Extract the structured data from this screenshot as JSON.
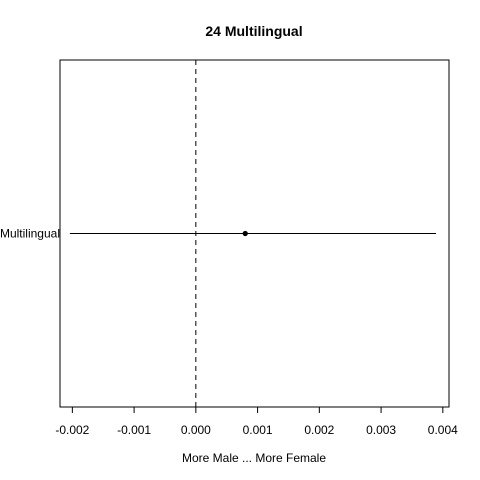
{
  "chart_data": {
    "type": "scatter",
    "title": "24 Multilingual",
    "xlabel": "More Male ... More Female",
    "ylabel": "",
    "xlim": [
      -0.0022,
      0.0041
    ],
    "xticks": [
      -0.002,
      -0.001,
      0.0,
      0.001,
      0.002,
      0.003,
      0.004
    ],
    "xtick_labels": [
      "-0.002",
      "-0.001",
      "0.000",
      "0.001",
      "0.002",
      "0.003",
      "0.004"
    ],
    "reference_line_x": 0.0,
    "series": [
      {
        "name": "Multilingual",
        "estimate": 0.0008,
        "ci_low": -0.00204,
        "ci_high": 0.00389
      }
    ],
    "colors": {
      "line": "#000000",
      "point": "#000000",
      "frame": "#000000"
    }
  }
}
